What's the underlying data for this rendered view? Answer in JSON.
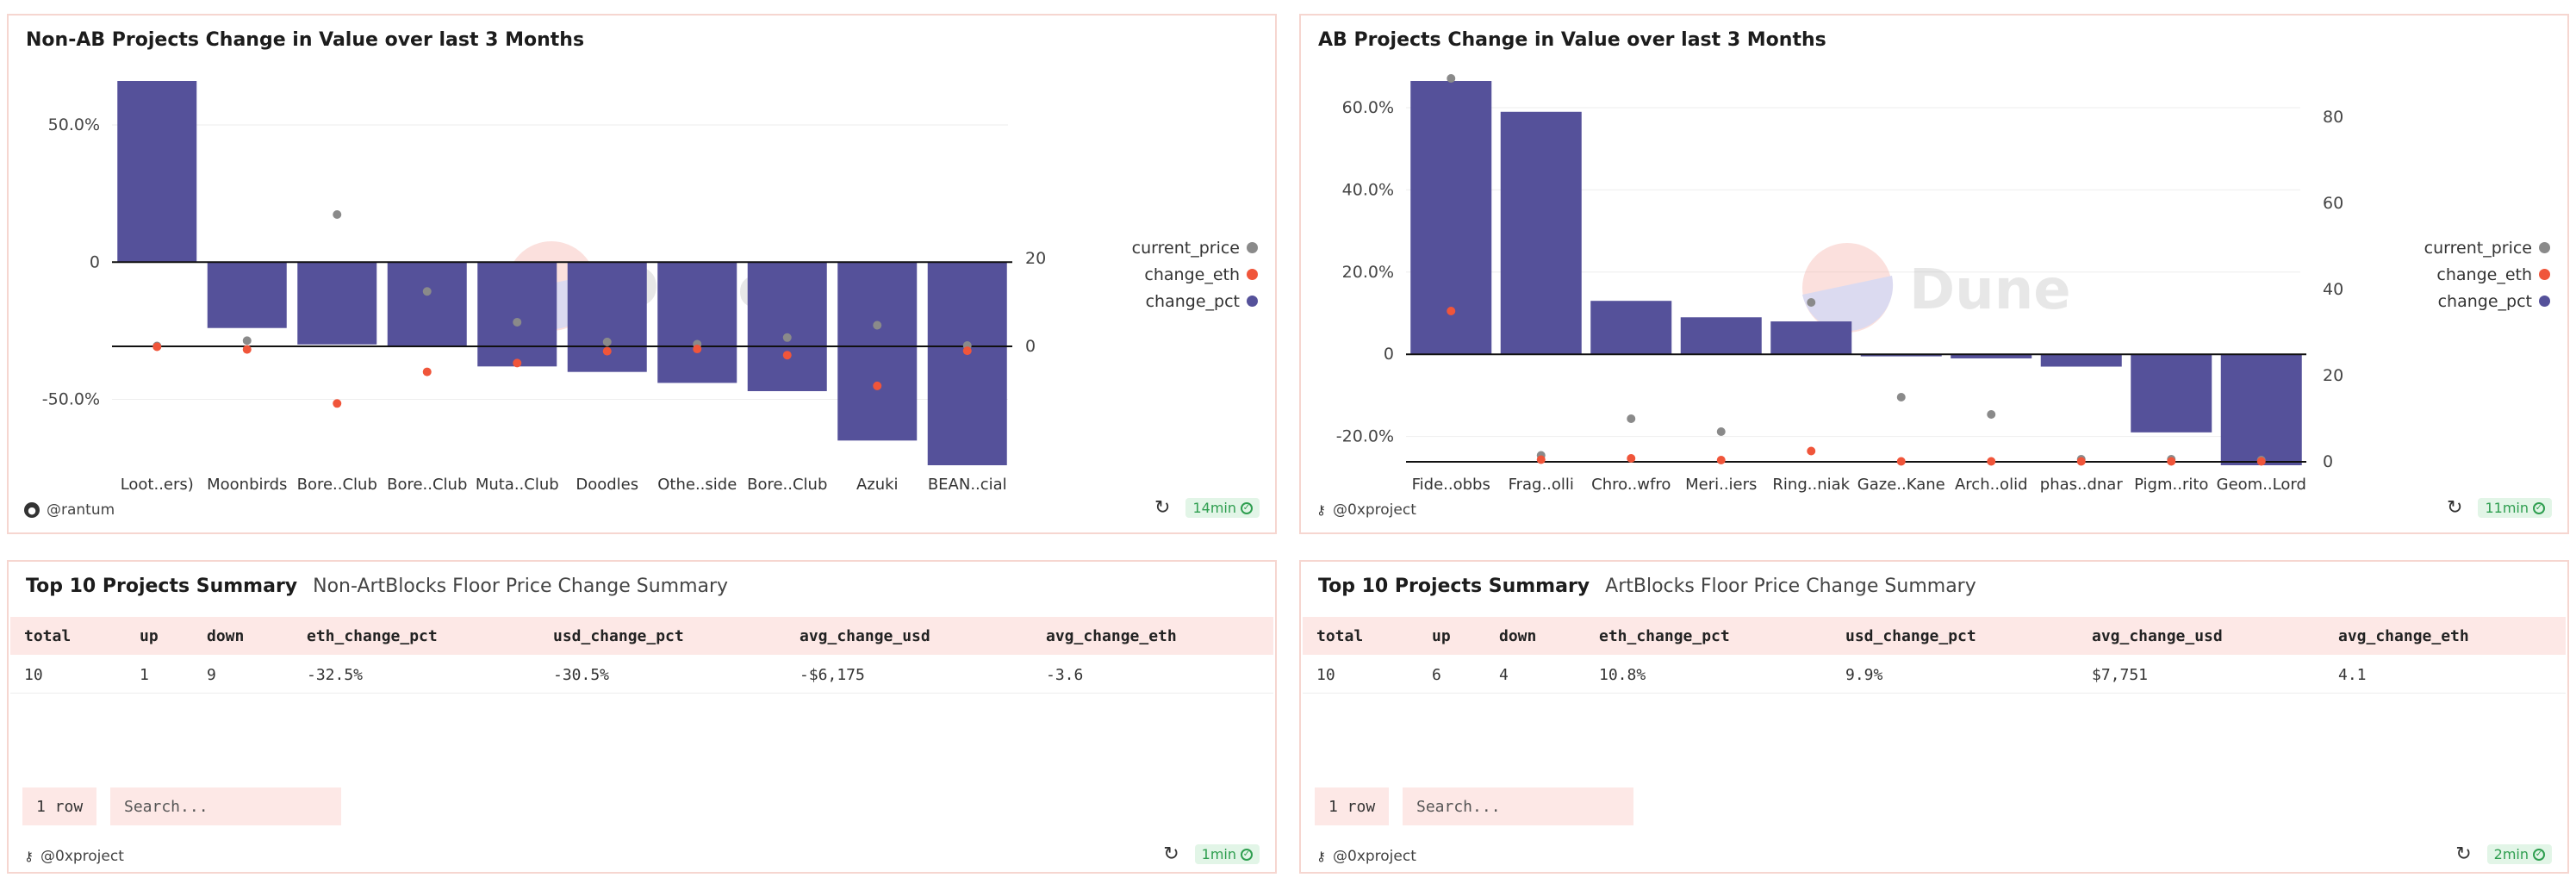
{
  "colors": {
    "bar": "#55519a",
    "price": "#8a8a8a",
    "eth": "#f0553a",
    "border": "#f6d6d0",
    "header_bg": "#fde8e6"
  },
  "left_chart": {
    "title": "Non-AB Projects Change in Value over last 3 Months",
    "author": "@rantum",
    "time": "14min",
    "watermark": "Dune",
    "legend": [
      "current_price",
      "change_eth",
      "change_pct"
    ]
  },
  "right_chart": {
    "title": "AB Projects Change in Value over last 3 Months",
    "author": "@0xproject",
    "time": "11min",
    "watermark": "Dune",
    "legend": [
      "current_price",
      "change_eth",
      "change_pct"
    ]
  },
  "chart_data": [
    {
      "type": "bar",
      "title": "Non-AB Projects Change in Value over last 3 Months",
      "categories": [
        "Loot..ers)",
        "Moonbirds",
        "Bore..Club",
        "Bore..Club",
        "Muta..Club",
        "Doodles",
        "Othe..side",
        "Bore..Club",
        "Azuki",
        "BEAN..cial"
      ],
      "series": [
        {
          "name": "change_pct",
          "axis": "left",
          "values": [
            0.66,
            -0.24,
            -0.3,
            -0.31,
            -0.38,
            -0.4,
            -0.44,
            -0.47,
            -0.65,
            -0.74
          ]
        },
        {
          "name": "current_price",
          "axis": "right",
          "values": [
            0.1,
            1.3,
            30.0,
            12.5,
            5.5,
            1.0,
            0.5,
            2.0,
            4.8,
            0.2
          ]
        },
        {
          "name": "change_eth",
          "axis": "right",
          "values": [
            -0.1,
            -0.7,
            -13.0,
            -5.8,
            -3.8,
            -1.1,
            -0.6,
            -2.0,
            -9.0,
            -1.0
          ]
        }
      ],
      "left_axis": {
        "ticks": [
          "50.0%",
          "0",
          "-50.0%"
        ],
        "range": [
          -0.74,
          0.66
        ]
      },
      "right_axis": {
        "ticks": [
          "20",
          "0"
        ]
      }
    },
    {
      "type": "bar",
      "title": "AB Projects Change in Value over last 3 Months",
      "categories": [
        "Fide..obbs",
        "Frag..olli",
        "Chro..wfro",
        "Meri..iers",
        "Ring..niak",
        "Gaze..Kane",
        "Arch..olid",
        "phas..dnar",
        "Pigm..rito",
        "Geom..Lord"
      ],
      "series": [
        {
          "name": "change_pct",
          "axis": "left",
          "values": [
            0.665,
            0.59,
            0.13,
            0.09,
            0.08,
            -0.005,
            -0.01,
            -0.03,
            -0.19,
            -0.27
          ]
        },
        {
          "name": "current_price",
          "axis": "right",
          "values": [
            89,
            1.5,
            10,
            7,
            37,
            15,
            11,
            0.6,
            0.6,
            0.4
          ]
        },
        {
          "name": "change_eth",
          "axis": "right",
          "values": [
            35,
            0.5,
            0.8,
            0.4,
            2.5,
            0.1,
            0.1,
            0.1,
            0.1,
            0.1
          ]
        }
      ],
      "left_axis": {
        "ticks": [
          "60.0%",
          "40.0%",
          "20.0%",
          "0",
          "-20.0%"
        ],
        "range": [
          -0.27,
          0.665
        ]
      },
      "right_axis": {
        "ticks": [
          "80",
          "60",
          "40",
          "20",
          "0"
        ]
      }
    }
  ],
  "left_table": {
    "title": "Top 10 Projects Summary",
    "subtitle": "Non-ArtBlocks Floor Price Change Summary",
    "columns": [
      "total",
      "up",
      "down",
      "eth_change_pct",
      "usd_change_pct",
      "avg_change_usd",
      "avg_change_eth"
    ],
    "row": [
      "10",
      "1",
      "9",
      "-32.5%",
      "-30.5%",
      "-$6,175",
      "-3.6"
    ],
    "row_count": "1 row",
    "search_placeholder": "Search...",
    "author": "@0xproject",
    "time": "1min"
  },
  "right_table": {
    "title": "Top 10 Projects Summary",
    "subtitle": "ArtBlocks Floor Price Change Summary",
    "columns": [
      "total",
      "up",
      "down",
      "eth_change_pct",
      "usd_change_pct",
      "avg_change_usd",
      "avg_change_eth"
    ],
    "row": [
      "10",
      "6",
      "4",
      "10.8%",
      "9.9%",
      "$7,751",
      "4.1"
    ],
    "row_count": "1 row",
    "search_placeholder": "Search...",
    "author": "@0xproject",
    "time": "2min"
  }
}
